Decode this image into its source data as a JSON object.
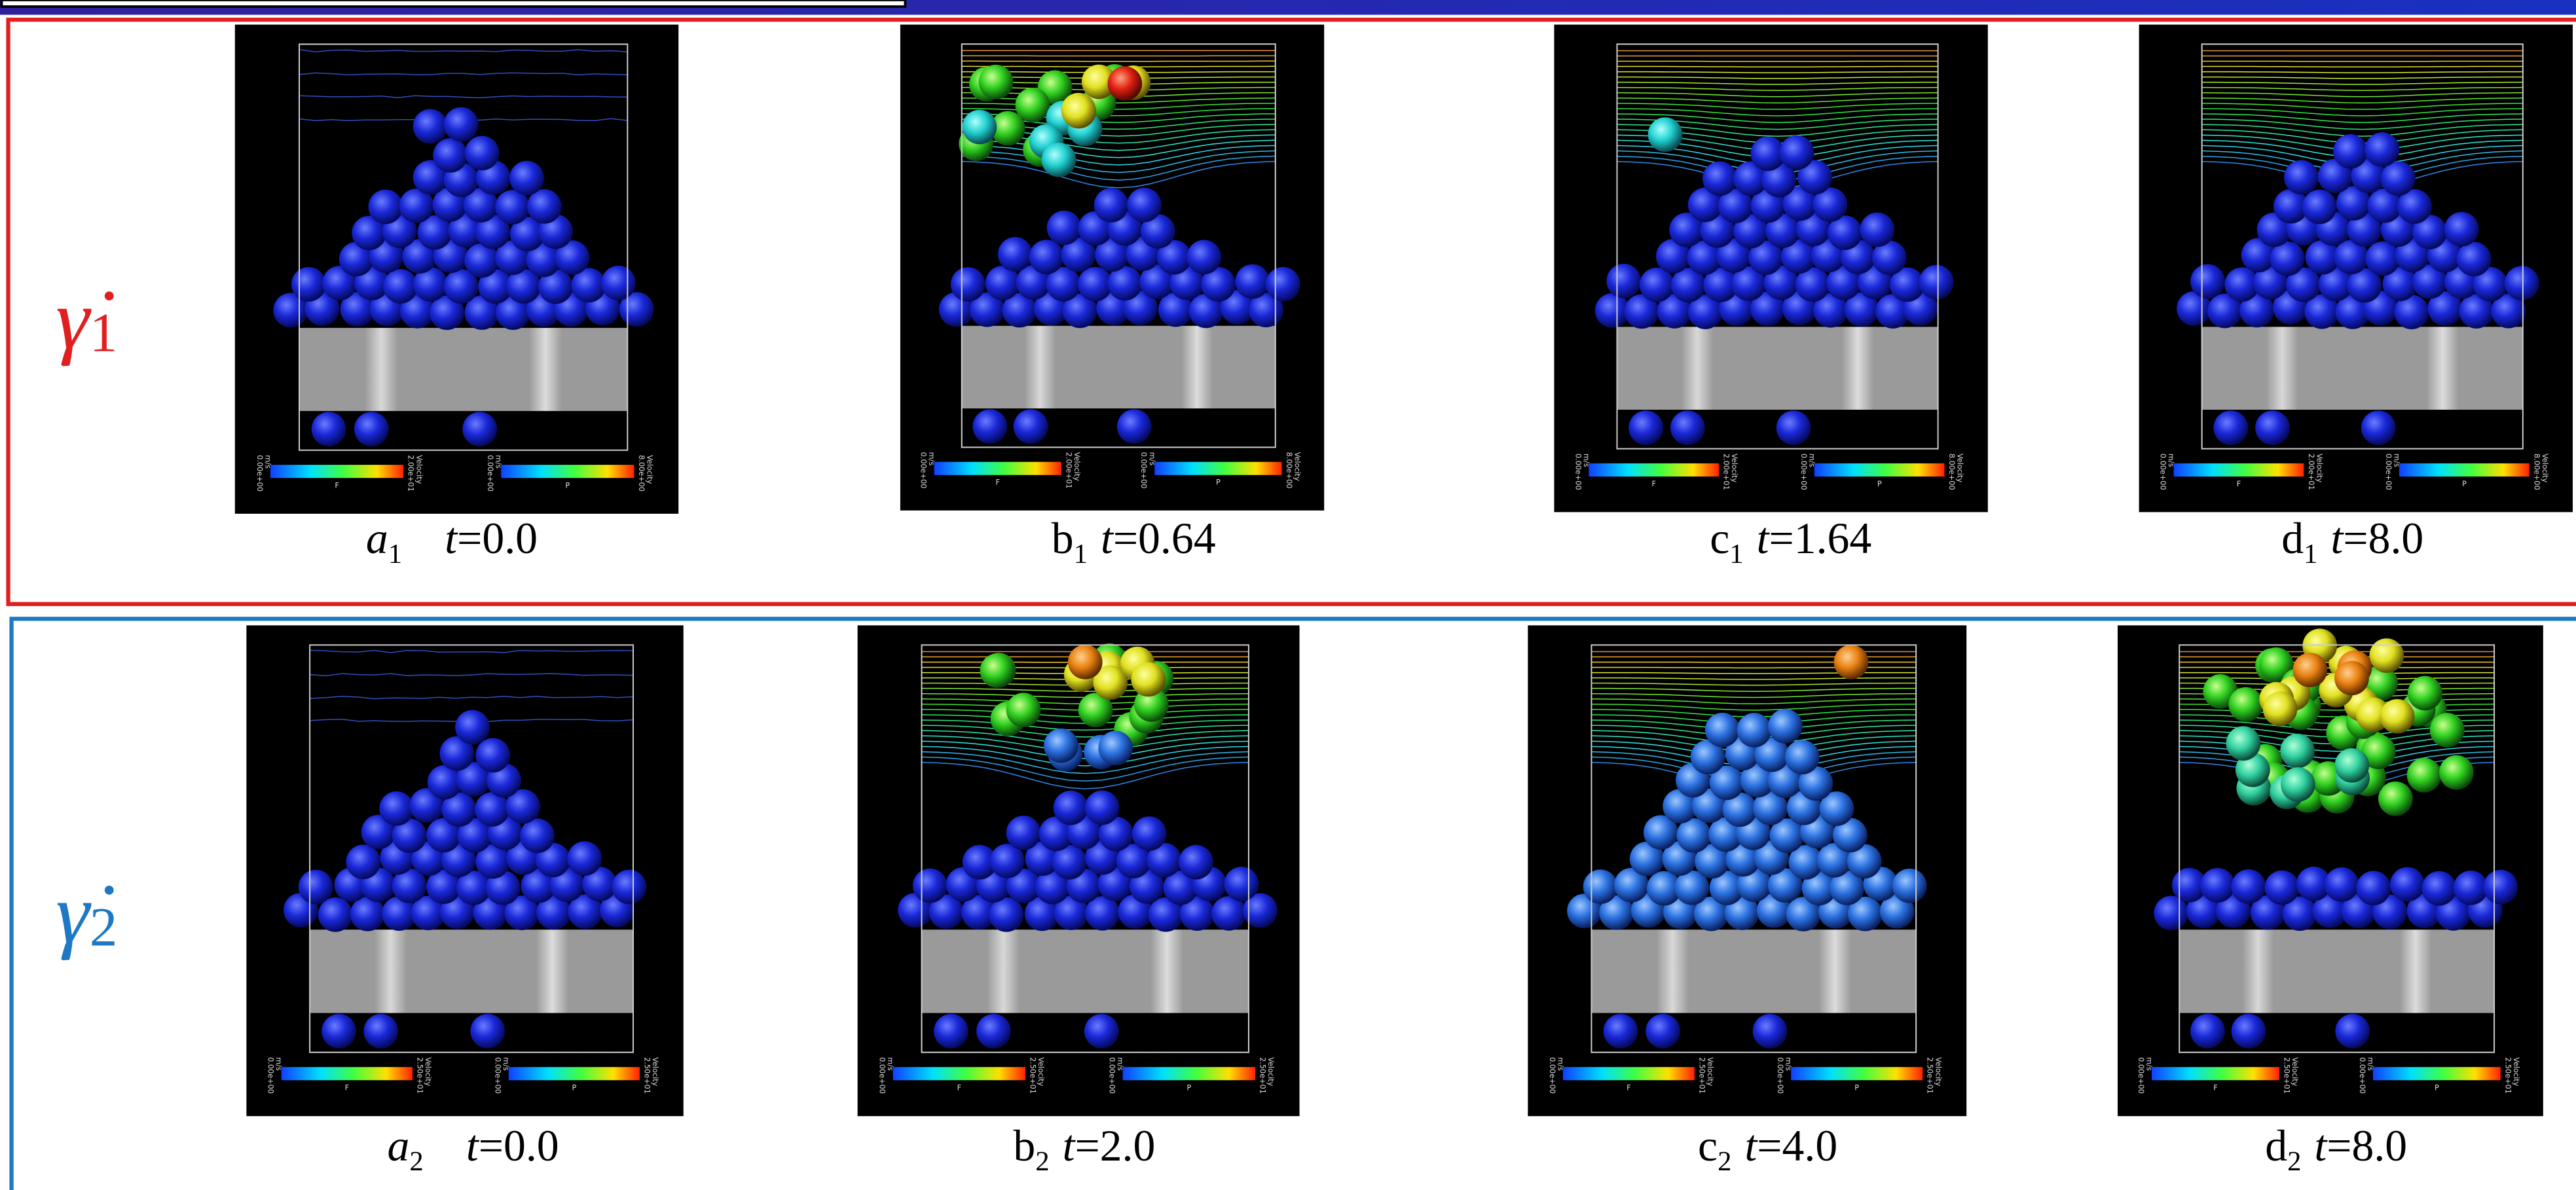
{
  "rows": [
    {
      "label": {
        "symbol": "γ̇",
        "subscript": "1"
      },
      "panels": [
        {
          "letter": "a",
          "subscript": "1",
          "time": {
            "var": "t",
            "value": "=0.0"
          }
        },
        {
          "letter": "b",
          "subscript": "1",
          "time": {
            "var": "t",
            "value": "=0.64"
          }
        },
        {
          "letter": "c",
          "subscript": "1",
          "time": {
            "var": "t",
            "value": "=1.64"
          }
        },
        {
          "letter": "d",
          "subscript": "1",
          "time": {
            "var": "t",
            "value": "=8.0"
          }
        }
      ],
      "colorbars": {
        "fluid": {
          "min": "0.00e+00",
          "max": "2.00e+01",
          "quantity": "Velocity",
          "unit": "m/s",
          "name": "F"
        },
        "particle": {
          "min": "0.00e+00",
          "max": "8.00e+00",
          "quantity": "Velocity",
          "unit": "m/s",
          "name": "P"
        }
      }
    },
    {
      "label": {
        "symbol": "γ̇",
        "subscript": "2"
      },
      "panels": [
        {
          "letter": "a",
          "subscript": "2",
          "time": {
            "var": "t",
            "value": "=0.0"
          }
        },
        {
          "letter": "b",
          "subscript": "2",
          "time": {
            "var": "t",
            "value": "=2.0"
          }
        },
        {
          "letter": "c",
          "subscript": "2",
          "time": {
            "var": "t",
            "value": "=4.0"
          }
        },
        {
          "letter": "d",
          "subscript": "2",
          "time": {
            "var": "t",
            "value": "=8.0"
          }
        }
      ],
      "colorbars": {
        "fluid": {
          "min": "0.00e+00",
          "max": "2.50e+01",
          "quantity": "Velocity",
          "unit": "m/s",
          "name": "F"
        },
        "particle": {
          "min": "0.00e+00",
          "max": "2.50e+01",
          "quantity": "Velocity",
          "unit": "m/s",
          "name": "P"
        }
      }
    }
  ]
}
